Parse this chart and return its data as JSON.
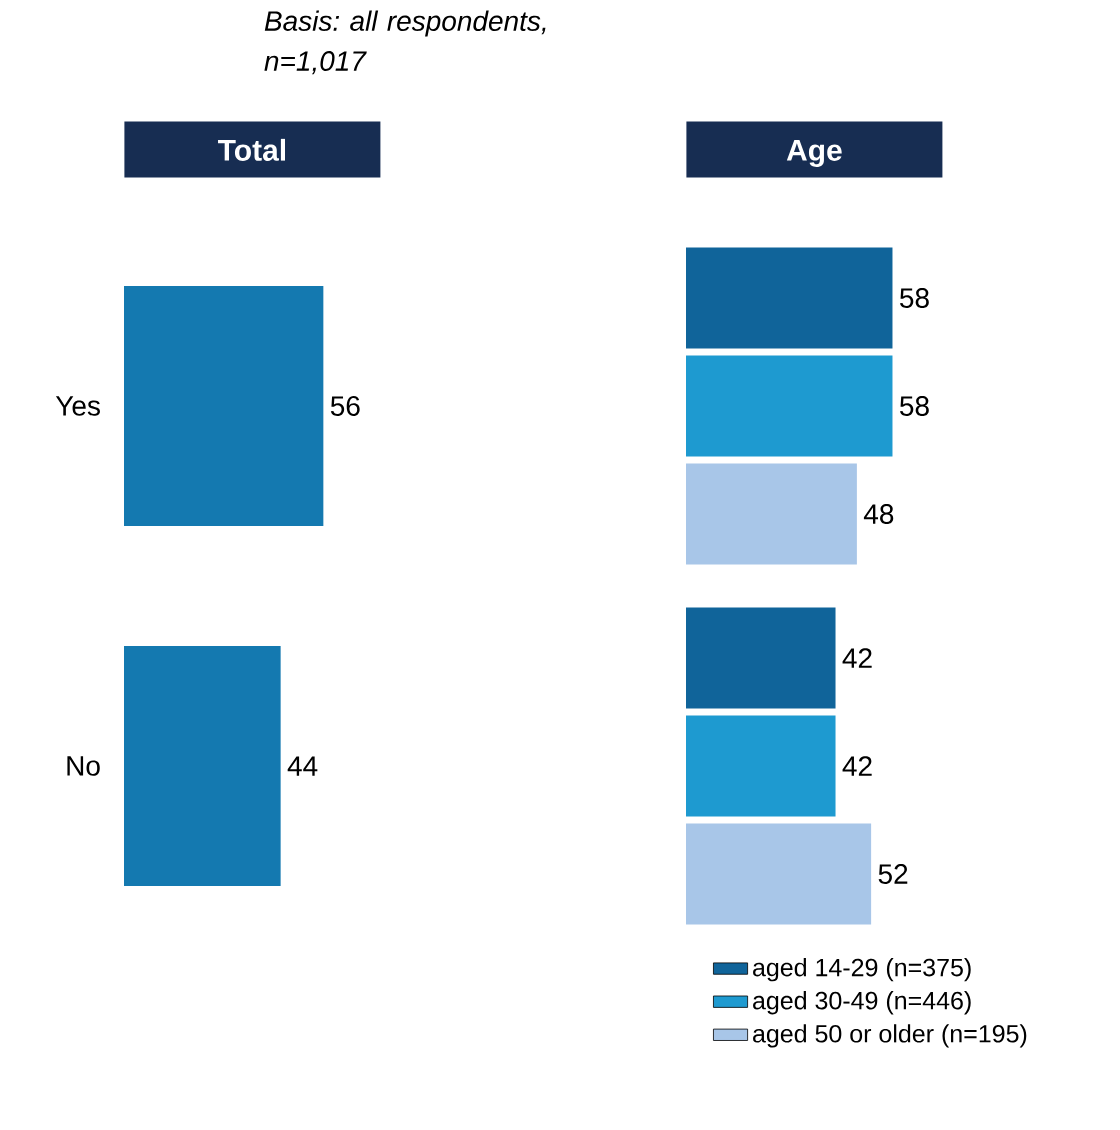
{
  "chart_data": [
    {
      "type": "bar",
      "orientation": "horizontal",
      "title": "Total",
      "annotations": [
        "Basis: all respondents, n=1,017"
      ],
      "categories": [
        "Yes",
        "No"
      ],
      "data_labels": true,
      "tick_labels": "y",
      "legend": false,
      "series": [
        {
          "color": "#1479b0",
          "values": [
            56,
            44
          ]
        }
      ]
    },
    {
      "type": "bar",
      "orientation": "horizontal",
      "title": "Age",
      "categories": [
        null,
        null
      ],
      "data_labels": true,
      "tick_labels": false,
      "legend": "bottom right",
      "series": [
        {
          "name": "aged 14-29 (n=375)",
          "color": "#10649a",
          "values": [
            58,
            42
          ]
        },
        {
          "name": "aged 30-49 (n=446)",
          "color": "#1e9ad0",
          "values": [
            58,
            42
          ]
        },
        {
          "name": "aged 50 or older (n=195)",
          "color": "#a8c6e8",
          "values": [
            48,
            52
          ]
        }
      ]
    }
  ]
}
